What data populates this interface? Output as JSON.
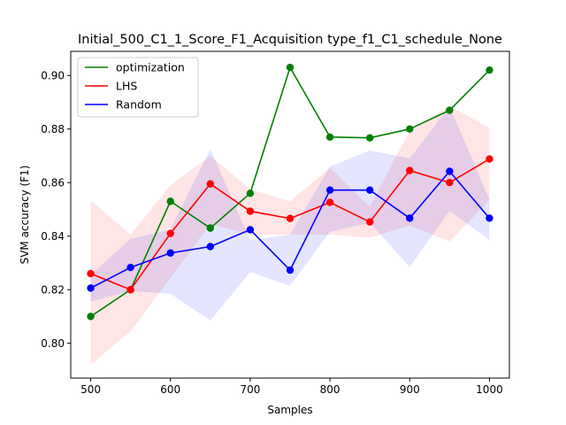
{
  "chart_data": {
    "type": "line",
    "title": "Initial_500_C1_1_Score_F1_Acquisition type_f1_C1_schedule_None",
    "xlabel": "Samples",
    "ylabel": "SVM accuracy (F1)",
    "xlim": [
      475,
      1025
    ],
    "ylim": [
      0.787,
      0.909
    ],
    "x": [
      500,
      550,
      600,
      650,
      700,
      750,
      800,
      850,
      900,
      950,
      1000
    ],
    "xticks": [
      500,
      600,
      700,
      800,
      900,
      1000
    ],
    "yticks": [
      0.8,
      0.82,
      0.84,
      0.86,
      0.88,
      0.9
    ],
    "ytick_labels": [
      "0.80",
      "0.82",
      "0.84",
      "0.86",
      "0.88",
      "0.90"
    ],
    "legend_position": "top-left",
    "series": [
      {
        "name": "optimization",
        "color": "#008000",
        "values": [
          0.81,
          0.82,
          0.853,
          0.843,
          0.856,
          0.903,
          0.877,
          0.8767,
          0.88,
          0.887,
          0.902
        ]
      },
      {
        "name": "LHS",
        "color": "#ff0000",
        "values": [
          0.826,
          0.82,
          0.841,
          0.8595,
          0.8493,
          0.8466,
          0.8526,
          0.8453,
          0.8645,
          0.86,
          0.8688
        ],
        "band_lower": [
          0.792,
          0.8045,
          0.8245,
          0.8445,
          0.8405,
          0.8406,
          0.8406,
          0.8395,
          0.844,
          0.838,
          0.8535
        ],
        "band_upper": [
          0.8535,
          0.8405,
          0.859,
          0.87,
          0.8575,
          0.853,
          0.8655,
          0.851,
          0.8795,
          0.8885,
          0.8805
        ]
      },
      {
        "name": "Random",
        "color": "#0000ff",
        "values": [
          0.8206,
          0.8283,
          0.8337,
          0.8361,
          0.8424,
          0.8273,
          0.8572,
          0.8572,
          0.8467,
          0.8642,
          0.8467
        ],
        "band_lower": [
          0.8155,
          0.8195,
          0.8185,
          0.8085,
          0.8265,
          0.8215,
          0.8416,
          0.845,
          0.8285,
          0.8495,
          0.8385
        ],
        "band_upper": [
          0.8255,
          0.839,
          0.8425,
          0.8725,
          0.8385,
          0.8405,
          0.866,
          0.872,
          0.869,
          0.8885,
          0.8535
        ]
      }
    ]
  }
}
